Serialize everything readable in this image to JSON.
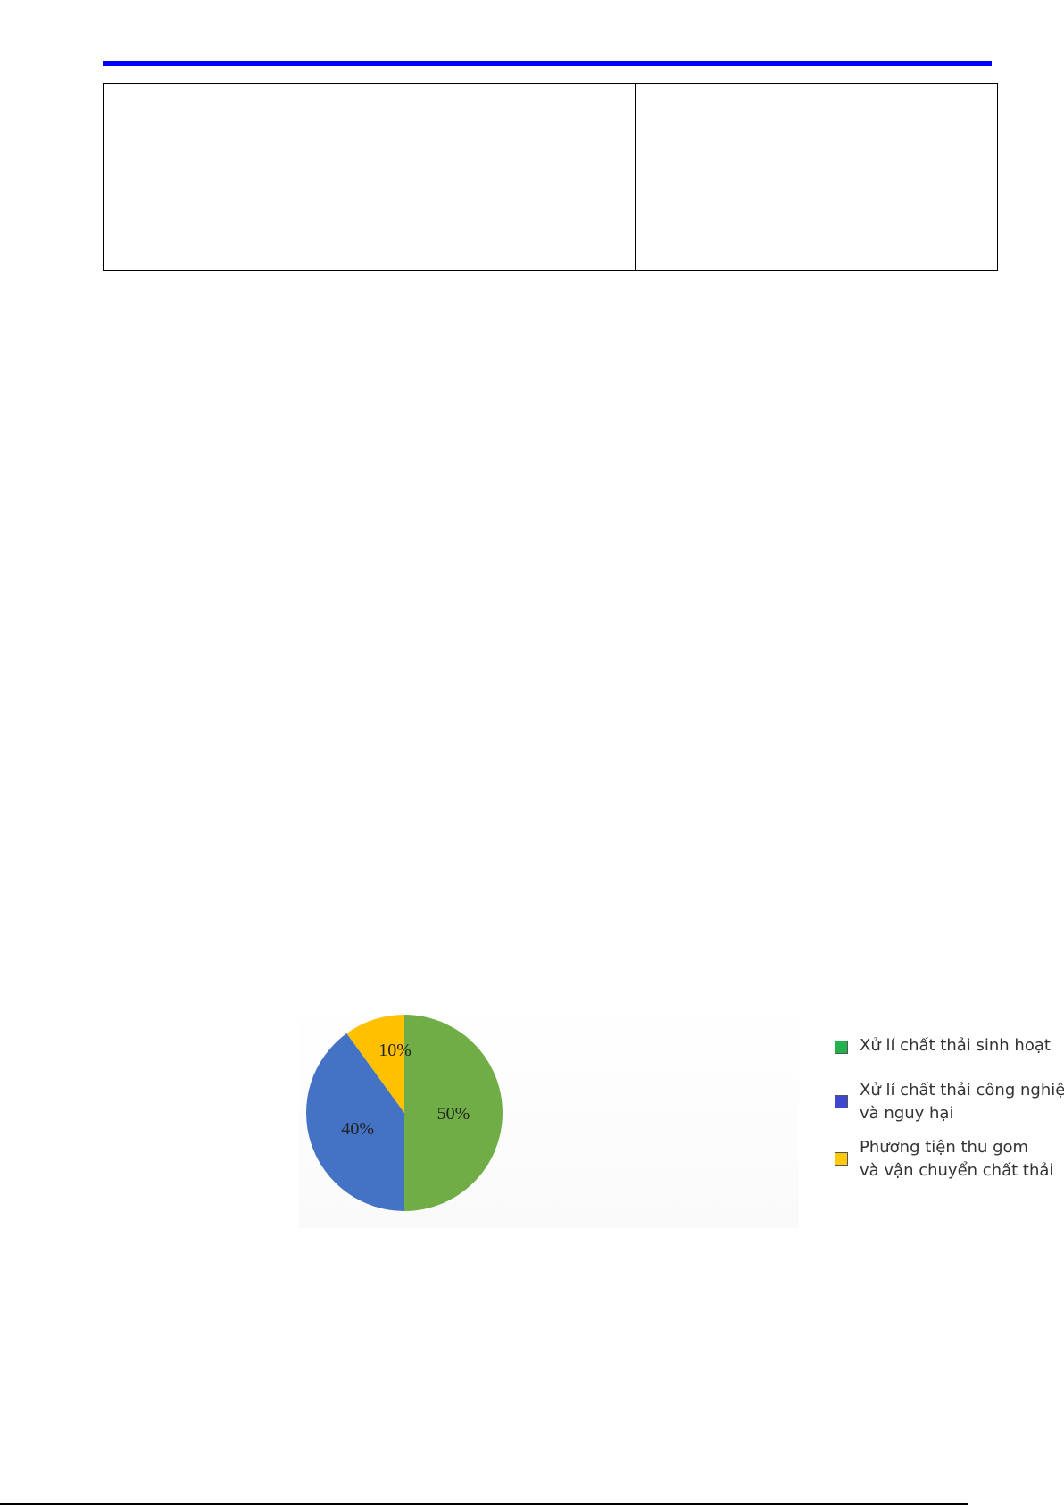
{
  "chart_data": {
    "type": "pie",
    "slices": [
      {
        "label": "Xử lí chất thải sinh hoạt",
        "value": 50,
        "data_label": "50%",
        "color": "#70ad47",
        "legend_color": "#22b14c"
      },
      {
        "label": "Xử lí chất thải công nghiệp và nguy hại",
        "value": 40,
        "data_label": "40%",
        "color": "#4472c4",
        "legend_color": "#3f48cc"
      },
      {
        "label": "Phương tiện thu gom và vận chuyển chất thải",
        "value": 10,
        "data_label": "10%",
        "color": "#ffc000",
        "legend_color": "#ffc90e"
      }
    ],
    "legend_position": "right",
    "legend_lines": [
      [
        "Xử lí chất thải sinh hoạt"
      ],
      [
        "Xử lí chất thải công nghiệp",
        "và nguy hại"
      ],
      [
        "Phương tiện thu gom",
        "và vận chuyển chất thải"
      ]
    ]
  },
  "colors": {
    "header_rule": "#0000ff"
  }
}
